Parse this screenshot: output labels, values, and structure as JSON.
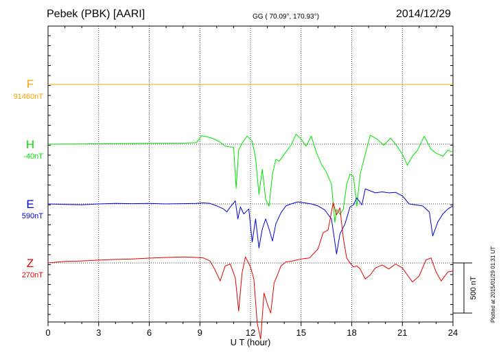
{
  "header": {
    "station": "Pebek (PBK)  [AARI]",
    "coords": "GG ( 70.09°, 170.93°)",
    "date": "2014/12/29"
  },
  "plotted_note": "Plotted at 2015/01/29 01:31  UT",
  "chart_data": {
    "type": "line",
    "xlabel": "U T (hour)",
    "xlim": [
      0,
      24
    ],
    "x_ticks": [
      "0",
      "3",
      "6",
      "9",
      "12",
      "15",
      "18",
      "21",
      "24"
    ],
    "scale_bar": {
      "label": "500 nT",
      "value_nT": 500
    },
    "grid": true,
    "series": [
      {
        "name": "F",
        "baseline": "91460nT",
        "color": "#f5a400",
        "points": [
          [
            0,
            0
          ],
          [
            24,
            0
          ]
        ]
      },
      {
        "name": "H",
        "baseline": "-40nT",
        "color": "#00e000",
        "points": [
          [
            0,
            0
          ],
          [
            2,
            2
          ],
          [
            4,
            5
          ],
          [
            6,
            8
          ],
          [
            8,
            10
          ],
          [
            8.8,
            15
          ],
          [
            9.1,
            85
          ],
          [
            9.4,
            75
          ],
          [
            9.8,
            55
          ],
          [
            10.2,
            20
          ],
          [
            10.5,
            -20
          ],
          [
            10.7,
            -25
          ],
          [
            11,
            -30
          ],
          [
            11.15,
            -440
          ],
          [
            11.3,
            -60
          ],
          [
            11.5,
            10
          ],
          [
            11.8,
            80
          ],
          [
            12.1,
            30
          ],
          [
            12.3,
            -140
          ],
          [
            12.5,
            -500
          ],
          [
            12.7,
            -250
          ],
          [
            12.9,
            -550
          ],
          [
            13.1,
            -620
          ],
          [
            13.3,
            -300
          ],
          [
            13.5,
            -150
          ],
          [
            13.7,
            -170
          ],
          [
            14,
            -100
          ],
          [
            14.4,
            -10
          ],
          [
            14.7,
            100
          ],
          [
            15,
            50
          ],
          [
            15.3,
            -20
          ],
          [
            15.6,
            80
          ],
          [
            15.9,
            -80
          ],
          [
            16.2,
            -200
          ],
          [
            16.5,
            -280
          ],
          [
            16.8,
            -400
          ],
          [
            17,
            -780
          ],
          [
            17.1,
            -650
          ],
          [
            17.3,
            -700
          ],
          [
            17.5,
            -650
          ],
          [
            17.7,
            -400
          ],
          [
            17.9,
            -300
          ],
          [
            18.1,
            -320
          ],
          [
            18.3,
            -620
          ],
          [
            18.5,
            -300
          ],
          [
            18.8,
            -100
          ],
          [
            19.1,
            90
          ],
          [
            19.5,
            50
          ],
          [
            19.9,
            -10
          ],
          [
            20.3,
            60
          ],
          [
            20.6,
            0
          ],
          [
            21,
            -100
          ],
          [
            21.3,
            -210
          ],
          [
            21.6,
            -120
          ],
          [
            21.9,
            -60
          ],
          [
            22.3,
            80
          ],
          [
            22.7,
            -50
          ],
          [
            23,
            -90
          ],
          [
            23.4,
            -120
          ],
          [
            23.7,
            -60
          ],
          [
            24,
            -80
          ]
        ]
      },
      {
        "name": "E",
        "baseline": "590nT",
        "color": "#0000d0",
        "points": [
          [
            0,
            0
          ],
          [
            1,
            -5
          ],
          [
            2,
            -8
          ],
          [
            3,
            0
          ],
          [
            4,
            5
          ],
          [
            5,
            3
          ],
          [
            6,
            5
          ],
          [
            7,
            0
          ],
          [
            8,
            3
          ],
          [
            8.8,
            5
          ],
          [
            9.2,
            10
          ],
          [
            9.6,
            5
          ],
          [
            10,
            -20
          ],
          [
            10.4,
            -50
          ],
          [
            10.6,
            -80
          ],
          [
            10.8,
            -30
          ],
          [
            11.1,
            30
          ],
          [
            11.25,
            -150
          ],
          [
            11.4,
            -30
          ],
          [
            11.6,
            -100
          ],
          [
            11.9,
            -50
          ],
          [
            12.1,
            -380
          ],
          [
            12.3,
            -150
          ],
          [
            12.5,
            -440
          ],
          [
            12.7,
            -250
          ],
          [
            12.9,
            -150
          ],
          [
            13.1,
            -250
          ],
          [
            13.3,
            -370
          ],
          [
            13.5,
            -200
          ],
          [
            13.8,
            -90
          ],
          [
            14.1,
            -20
          ],
          [
            14.4,
            0
          ],
          [
            14.8,
            20
          ],
          [
            15.2,
            10
          ],
          [
            15.6,
            0
          ],
          [
            16,
            -20
          ],
          [
            16.4,
            -60
          ],
          [
            16.8,
            -150
          ],
          [
            17.1,
            -500
          ],
          [
            17.3,
            -300
          ],
          [
            17.6,
            -200
          ],
          [
            17.9,
            -30
          ],
          [
            18.1,
            -10
          ],
          [
            18.3,
            60
          ],
          [
            18.6,
            -10
          ],
          [
            18.8,
            150
          ],
          [
            19.1,
            130
          ],
          [
            19.4,
            110
          ],
          [
            19.8,
            120
          ],
          [
            20.2,
            110
          ],
          [
            20.6,
            115
          ],
          [
            21,
            80
          ],
          [
            21.4,
            0
          ],
          [
            21.8,
            -10
          ],
          [
            22.2,
            -20
          ],
          [
            22.6,
            -80
          ],
          [
            22.8,
            -320
          ],
          [
            23.1,
            -180
          ],
          [
            23.4,
            -100
          ],
          [
            23.7,
            -50
          ],
          [
            24,
            -20
          ]
        ]
      },
      {
        "name": "Z",
        "baseline": "270nT",
        "color": "#e00000",
        "points": [
          [
            0,
            0
          ],
          [
            1,
            15
          ],
          [
            2,
            20
          ],
          [
            3,
            28
          ],
          [
            4,
            35
          ],
          [
            5,
            40
          ],
          [
            6,
            48
          ],
          [
            7,
            55
          ],
          [
            8,
            60
          ],
          [
            8.8,
            55
          ],
          [
            9.2,
            50
          ],
          [
            9.6,
            20
          ],
          [
            9.9,
            -70
          ],
          [
            10.2,
            -180
          ],
          [
            10.5,
            -30
          ],
          [
            10.8,
            -10
          ],
          [
            11.1,
            -150
          ],
          [
            11.3,
            -480
          ],
          [
            11.5,
            -100
          ],
          [
            11.7,
            60
          ],
          [
            12,
            -40
          ],
          [
            12.2,
            -160
          ],
          [
            12.4,
            -600
          ],
          [
            12.6,
            -760
          ],
          [
            12.8,
            -300
          ],
          [
            13.0,
            -410
          ],
          [
            13.2,
            -500
          ],
          [
            13.4,
            -200
          ],
          [
            13.6,
            -120
          ],
          [
            13.8,
            -30
          ],
          [
            14.1,
            10
          ],
          [
            14.5,
            20
          ],
          [
            15,
            40
          ],
          [
            15.5,
            50
          ],
          [
            16,
            140
          ],
          [
            16.3,
            300
          ],
          [
            16.6,
            330
          ],
          [
            16.9,
            600
          ],
          [
            17.1,
            480
          ],
          [
            17.3,
            550
          ],
          [
            17.5,
            250
          ],
          [
            17.7,
            50
          ],
          [
            17.9,
            0
          ],
          [
            18.1,
            -40
          ],
          [
            18.3,
            -30
          ],
          [
            18.5,
            -60
          ],
          [
            18.8,
            -160
          ],
          [
            19.1,
            -120
          ],
          [
            19.4,
            -50
          ],
          [
            19.8,
            -20
          ],
          [
            20.2,
            -60
          ],
          [
            20.6,
            -10
          ],
          [
            21,
            -50
          ],
          [
            21.3,
            -120
          ],
          [
            21.6,
            -190
          ],
          [
            22,
            -130
          ],
          [
            22.4,
            30
          ],
          [
            22.7,
            50
          ],
          [
            23,
            -90
          ],
          [
            23.3,
            -180
          ],
          [
            23.7,
            -90
          ],
          [
            24,
            -80
          ]
        ]
      }
    ]
  }
}
